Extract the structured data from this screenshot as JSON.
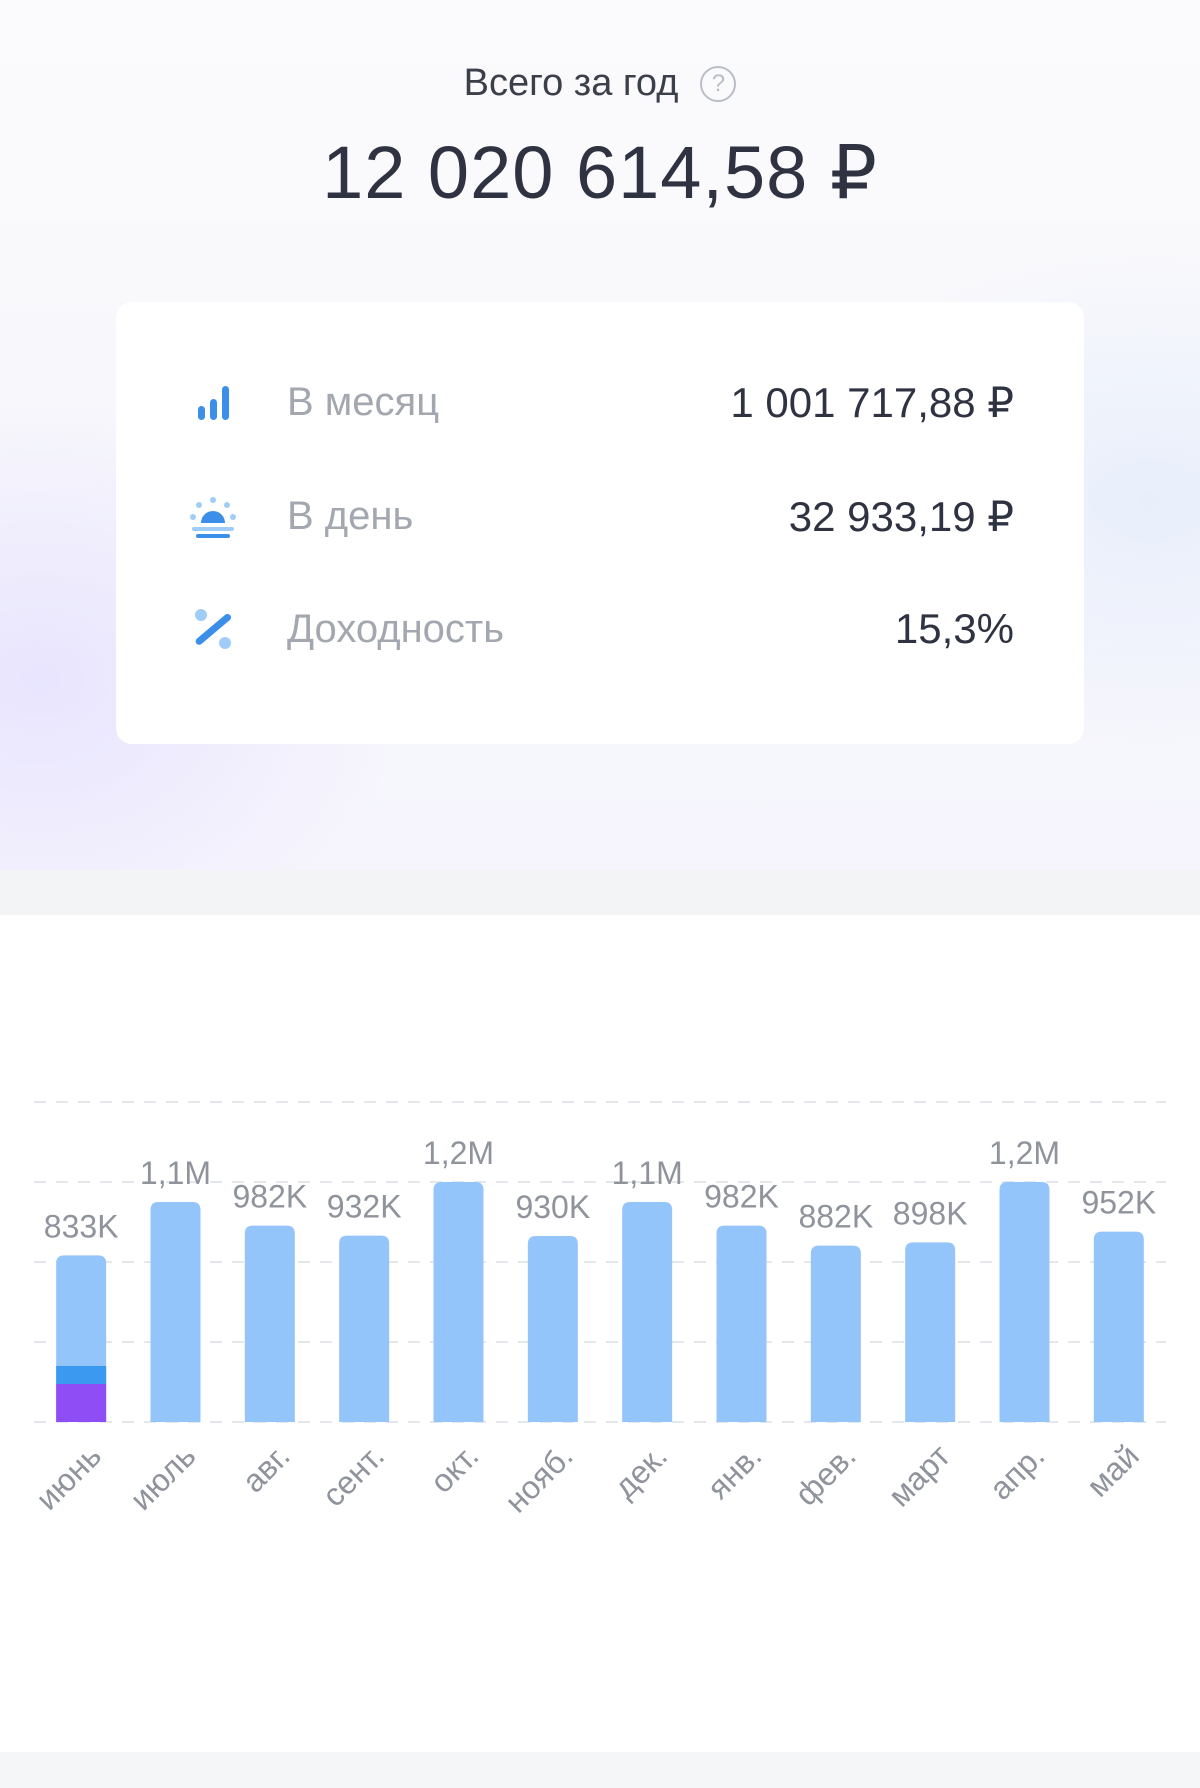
{
  "summary": {
    "title": "Всего за год",
    "help_icon_glyph": "?",
    "total": "12 020 614,58 ₽"
  },
  "stats": [
    {
      "icon": "bar-chart-icon",
      "label": "В месяц",
      "value": "1 001 717,88 ₽"
    },
    {
      "icon": "sunrise-icon",
      "label": "В день",
      "value": "32 933,19 ₽"
    },
    {
      "icon": "percent-icon",
      "label": "Доходность",
      "value": "15,3%"
    }
  ],
  "colors": {
    "bar": "#93c5fb",
    "bar_segment_blue": "#3b9af0",
    "bar_segment_purple": "#8f4df5",
    "icon_blue": "#3b8fe8",
    "icon_light_blue": "#9fcdf7"
  },
  "chart_data": {
    "type": "bar",
    "categories": [
      "июнь",
      "июль",
      "авг.",
      "сент.",
      "окт.",
      "нояб.",
      "дек.",
      "янв.",
      "фев.",
      "март",
      "апр.",
      "май"
    ],
    "values": [
      833000,
      1100000,
      982000,
      932000,
      1200000,
      930000,
      1100000,
      982000,
      882000,
      898000,
      1200000,
      952000
    ],
    "data_labels": [
      "833K",
      "1,1M",
      "982K",
      "932K",
      "1,2M",
      "930K",
      "1,1M",
      "982K",
      "882K",
      "898K",
      "1,2M",
      "952K"
    ],
    "stacked_first_bar": {
      "purple": 190000,
      "blue": 90000
    },
    "ylim": [
      0,
      1600000
    ],
    "grid": true
  }
}
